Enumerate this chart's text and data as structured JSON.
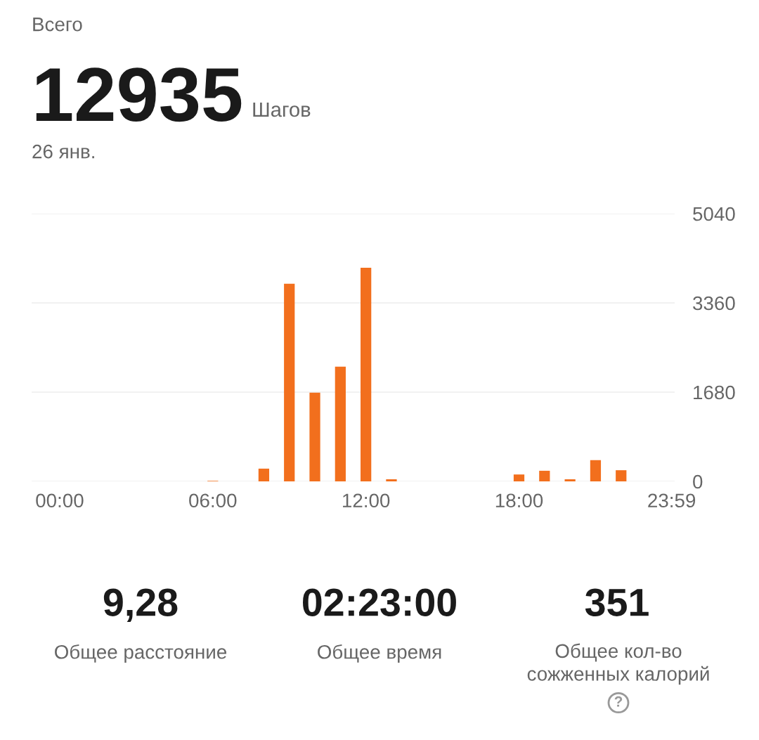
{
  "chart_data": {
    "type": "bar",
    "title": "Всего",
    "subtitle": "26 янв.",
    "x": [
      6,
      8,
      9,
      10,
      11,
      12,
      13,
      18,
      19,
      20,
      21,
      22
    ],
    "values": [
      10,
      240,
      3720,
      1670,
      2160,
      4020,
      40,
      130,
      200,
      40,
      400,
      210
    ],
    "color": "#f26f1d",
    "xlim": [
      -1.1,
      24.1
    ],
    "xticks": [
      {
        "value": 0,
        "label": "00:00"
      },
      {
        "value": 6,
        "label": "06:00"
      },
      {
        "value": 12,
        "label": "12:00"
      },
      {
        "value": 18,
        "label": "18:00"
      },
      {
        "value": 23.98,
        "label": "23:59"
      }
    ],
    "ylim": [
      0,
      5040
    ],
    "yticks": [
      0,
      1680,
      3360,
      5040
    ],
    "grid": "y",
    "annotations": [
      "12935",
      "Шагов",
      "9,28",
      "Общее расстояние",
      "02:23:00",
      "Общее время",
      "351",
      "Общее кол-во\nсожженных калорий",
      "?"
    ]
  }
}
